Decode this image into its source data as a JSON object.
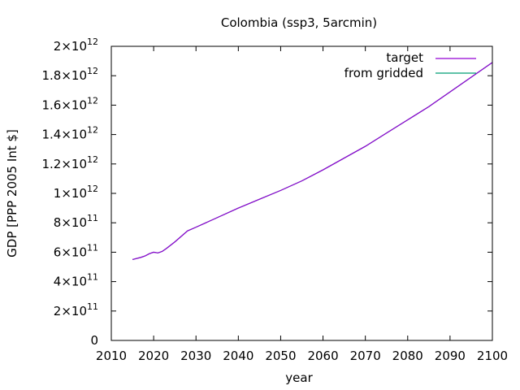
{
  "chart_data": {
    "type": "line",
    "title": "Colombia (ssp3, 5arcmin)",
    "xlabel": "year",
    "ylabel": "GDP [PPP 2005 Int $]",
    "xlim": [
      2010,
      2100
    ],
    "ylim": [
      0,
      2000000000000
    ],
    "grid": false,
    "legend_position": "top-right",
    "x_ticks": [
      2010,
      2020,
      2030,
      2040,
      2050,
      2060,
      2070,
      2080,
      2090,
      2100
    ],
    "y_ticks": [
      {
        "value": 0,
        "mantissa": "0",
        "exp": ""
      },
      {
        "value": 200000000000,
        "mantissa": "2×10",
        "exp": "11"
      },
      {
        "value": 400000000000,
        "mantissa": "4×10",
        "exp": "11"
      },
      {
        "value": 600000000000,
        "mantissa": "6×10",
        "exp": "11"
      },
      {
        "value": 800000000000,
        "mantissa": "8×10",
        "exp": "11"
      },
      {
        "value": 1000000000000,
        "mantissa": "1×10",
        "exp": "12"
      },
      {
        "value": 1200000000000,
        "mantissa": "1.2×10",
        "exp": "12"
      },
      {
        "value": 1400000000000,
        "mantissa": "1.4×10",
        "exp": "12"
      },
      {
        "value": 1600000000000,
        "mantissa": "1.6×10",
        "exp": "12"
      },
      {
        "value": 1800000000000,
        "mantissa": "1.8×10",
        "exp": "12"
      },
      {
        "value": 2000000000000,
        "mantissa": "2×10",
        "exp": "12"
      }
    ],
    "series": [
      {
        "name": "target",
        "color": "#9400d3",
        "x": [
          2015,
          2017,
          2018,
          2019,
          2020,
          2021,
          2022,
          2023,
          2025,
          2028,
          2030,
          2035,
          2040,
          2045,
          2050,
          2055,
          2060,
          2065,
          2070,
          2075,
          2080,
          2085,
          2090,
          2095,
          2100
        ],
        "y": [
          550000000000,
          565000000000,
          575000000000,
          590000000000,
          600000000000,
          595000000000,
          605000000000,
          625000000000,
          670000000000,
          745000000000,
          770000000000,
          835000000000,
          900000000000,
          960000000000,
          1020000000000,
          1085000000000,
          1160000000000,
          1240000000000,
          1320000000000,
          1410000000000,
          1500000000000,
          1590000000000,
          1690000000000,
          1790000000000,
          1890000000000
        ]
      },
      {
        "name": "from gridded",
        "color": "#009e73",
        "x": [
          2015,
          2017,
          2018,
          2019,
          2020,
          2021,
          2022,
          2023,
          2025,
          2028,
          2030,
          2035,
          2040,
          2045,
          2050,
          2055,
          2060,
          2065,
          2070,
          2075,
          2080,
          2085,
          2090,
          2095,
          2100
        ],
        "y": [
          550000000000,
          565000000000,
          575000000000,
          590000000000,
          600000000000,
          595000000000,
          605000000000,
          625000000000,
          670000000000,
          745000000000,
          770000000000,
          835000000000,
          900000000000,
          960000000000,
          1020000000000,
          1085000000000,
          1160000000000,
          1240000000000,
          1320000000000,
          1410000000000,
          1500000000000,
          1590000000000,
          1690000000000,
          1790000000000,
          1890000000000
        ]
      }
    ]
  }
}
